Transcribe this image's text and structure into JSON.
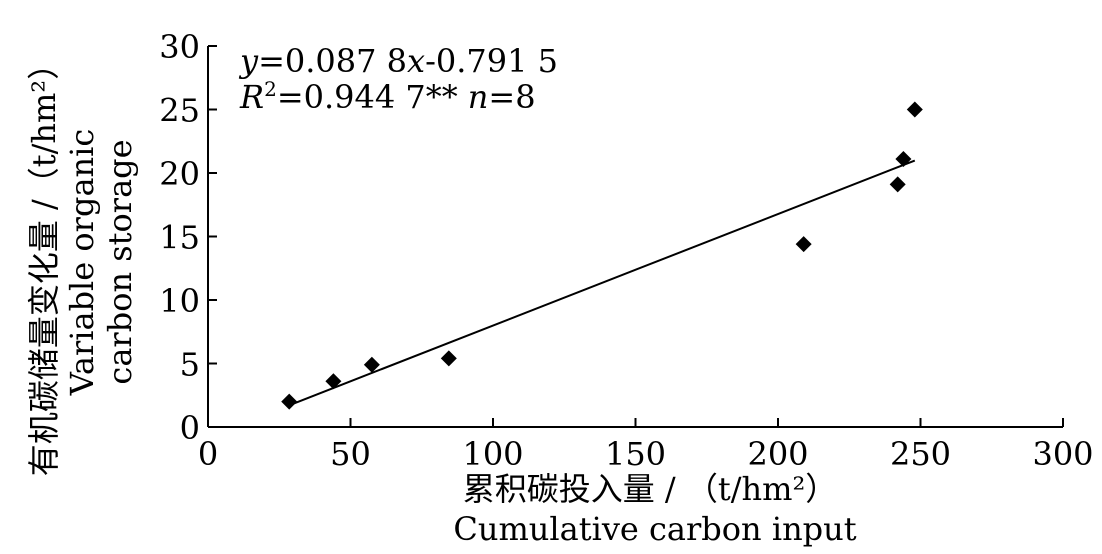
{
  "chart_data": {
    "type": "scatter",
    "title": "",
    "xlabel_cn": "累积碳投入量 / （t/hm²）",
    "xlabel_en": "Cumulative carbon input",
    "ylabel_cn": "有机碳储量变化量 /（t/hm²）",
    "ylabel_en_1": "Variable organic",
    "ylabel_en_2": "carbon storage",
    "xlim": [
      0,
      300
    ],
    "ylim": [
      0,
      30
    ],
    "x_ticks": [
      0,
      50,
      100,
      150,
      200,
      250,
      300
    ],
    "y_ticks": [
      0,
      5,
      10,
      15,
      20,
      25,
      30
    ],
    "x_tick_labels": [
      "0",
      "50",
      "100",
      "150",
      "200",
      "250",
      "300"
    ],
    "y_tick_labels": [
      "0",
      "5",
      "10",
      "15",
      "20",
      "25",
      "30"
    ],
    "points": [
      {
        "x": 28.5,
        "y": 2.0
      },
      {
        "x": 44.0,
        "y": 3.6
      },
      {
        "x": 57.5,
        "y": 4.9
      },
      {
        "x": 84.5,
        "y": 5.4
      },
      {
        "x": 209.0,
        "y": 14.4
      },
      {
        "x": 242.0,
        "y": 19.1
      },
      {
        "x": 244.0,
        "y": 21.1
      },
      {
        "x": 248.0,
        "y": 25.0
      }
    ],
    "regression": {
      "slope": 0.0878,
      "intercept": -0.7915,
      "x_range": [
        28.5,
        248.0
      ]
    },
    "grid": false,
    "legend": "none",
    "marker": "diamond",
    "color": "#000000",
    "equation": {
      "y_var": "y",
      "eq1_mid": "=0.087 8",
      "x_var": "x",
      "eq1_end": "-0.791 5",
      "r_var": "R",
      "r_sup": "2",
      "r_value": "=0.944 7**",
      "n_var": "n",
      "n_value": "=8"
    }
  }
}
